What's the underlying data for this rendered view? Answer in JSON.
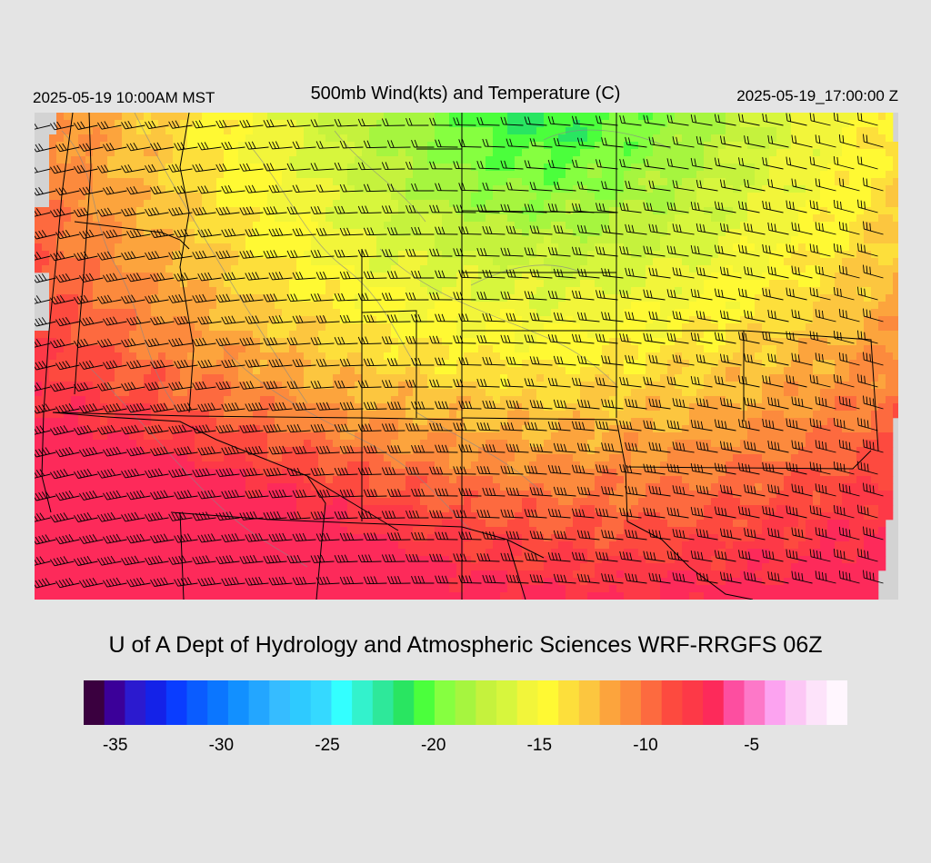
{
  "header": {
    "local_time": "2025-05-19 10:00AM MST",
    "title": "500mb Wind(kts) and Temperature (C)",
    "valid_time": "2025-05-19_17:00:00 Z"
  },
  "credit": "U of A Dept of Hydrology and Atmospheric Sciences WRF-RRGFS 06Z",
  "colorbar": {
    "min": -36,
    "max": -1,
    "bin_width": 1,
    "colors": [
      "#3a003f",
      "#3b0099",
      "#2b1acf",
      "#1422e8",
      "#0a3dff",
      "#0a5cff",
      "#0b76ff",
      "#1290ff",
      "#23a6ff",
      "#36bcff",
      "#2ecaff",
      "#35d9ff",
      "#33ffff",
      "#33f2cc",
      "#2ee89a",
      "#29e561",
      "#4bff3c",
      "#86ff40",
      "#a6f53f",
      "#c5f23d",
      "#d7f63d",
      "#f2f53a",
      "#fff933",
      "#fddf3b",
      "#fcc63f",
      "#fca43d",
      "#fc8a3d",
      "#fd6a3f",
      "#fd4a3f",
      "#fd3947",
      "#fd2a5a",
      "#fd4ea0",
      "#fd78c8",
      "#fca3f0",
      "#fcc7f5",
      "#fde3fa",
      "#fff6fe"
    ],
    "tick_labels": [
      {
        "value": -35,
        "label": "-35"
      },
      {
        "value": -30,
        "label": "-30"
      },
      {
        "value": -25,
        "label": "-25"
      },
      {
        "value": -20,
        "label": "-20"
      },
      {
        "value": -15,
        "label": "-15"
      },
      {
        "value": -10,
        "label": "-10"
      },
      {
        "value": -5,
        "label": "-5"
      }
    ]
  },
  "map": {
    "background_color": "#d3d3d3",
    "boundary_color": "#000000",
    "contour_color": "#888888",
    "barb_color": "#000000",
    "temperature_range_c": [
      -21,
      -6
    ],
    "wind_direction_from_deg": 275
  }
}
